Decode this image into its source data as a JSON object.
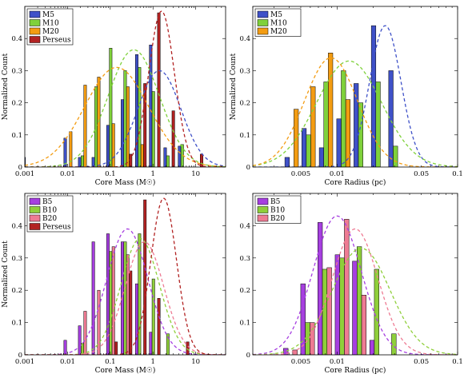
{
  "colors": {
    "M5": "#3f51c8",
    "M10": "#7fd13b",
    "M20": "#f39c12",
    "B5": "#a63fe0",
    "B10": "#8fcf3a",
    "B20": "#ee7b93",
    "Perseus": "#b22222"
  },
  "chart_data": [
    {
      "id": "top-left",
      "type": "bar",
      "xscale": "log",
      "xlim": [
        0.001,
        50
      ],
      "ylim": [
        0,
        0.5
      ],
      "xlabel": "Core Mass (M☉)",
      "ylabel": "Normalized Count",
      "xticks": [
        {
          "v": 0.001,
          "label": "0.001"
        },
        {
          "v": 0.01,
          "label": "0.01"
        },
        {
          "v": 0.1,
          "label": "0.1"
        },
        {
          "v": 1,
          "label": "1"
        },
        {
          "v": 10,
          "label": "10"
        }
      ],
      "yticks": [
        {
          "v": 0,
          "label": "0"
        },
        {
          "v": 0.1,
          "label": "0.1"
        },
        {
          "v": 0.2,
          "label": "0.2"
        },
        {
          "v": 0.3,
          "label": "0.3"
        },
        {
          "v": 0.4,
          "label": "0.4"
        }
      ],
      "bin_centers": [
        0.0012,
        0.0025,
        0.005,
        0.011,
        0.024,
        0.05,
        0.11,
        0.24,
        0.52,
        1.1,
        2.4,
        5.2,
        11,
        24
      ],
      "legend": "top-left",
      "series": [
        {
          "name": "M5",
          "color_key": "M5",
          "values": [
            0.03,
            0,
            0,
            0.09,
            0.03,
            0.03,
            0.13,
            0.21,
            0.35,
            0.38,
            0.06,
            0.065,
            0,
            0
          ]
        },
        {
          "name": "M10",
          "color_key": "M10",
          "values": [
            0,
            0,
            0,
            0,
            0.035,
            0.25,
            0.37,
            0.3,
            0.31,
            0.235,
            0.035,
            0.07,
            0,
            0
          ]
        },
        {
          "name": "M20",
          "color_key": "M20",
          "values": [
            0,
            0,
            0,
            0.11,
            0.255,
            0.28,
            0.135,
            0.25,
            0.07,
            0,
            0,
            0,
            0,
            0
          ]
        },
        {
          "name": "Perseus",
          "color_key": "Perseus",
          "values": [
            0,
            0,
            0,
            0,
            0,
            0,
            0,
            0.04,
            0.26,
            0.48,
            0.175,
            0,
            0.04,
            0
          ]
        }
      ],
      "fits": [
        {
          "color_key": "M5",
          "mu": 0.15,
          "sigma": 0.5,
          "peak": 0.3
        },
        {
          "color_key": "M10",
          "mu": -0.45,
          "sigma": 0.6,
          "peak": 0.365
        },
        {
          "color_key": "M20",
          "mu": -0.85,
          "sigma": 0.75,
          "peak": 0.31
        },
        {
          "color_key": "Perseus",
          "mu": 0.2,
          "sigma": 0.3,
          "peak": 0.485
        }
      ]
    },
    {
      "id": "top-right",
      "type": "bar",
      "xscale": "log",
      "xlim": [
        0.002,
        0.1
      ],
      "ylim": [
        0,
        0.5
      ],
      "xlabel": "Core Radius (pc)",
      "ylabel": "Normalized Count",
      "xticks": [
        {
          "v": 0.005,
          "label": "0.005"
        },
        {
          "v": 0.01,
          "label": "0.01"
        },
        {
          "v": 0.05,
          "label": "0.05"
        },
        {
          "v": 0.1,
          "label": "0.1"
        }
      ],
      "yticks": [
        {
          "v": 0,
          "label": "0"
        },
        {
          "v": 0.1,
          "label": "0.1"
        },
        {
          "v": 0.2,
          "label": "0.2"
        },
        {
          "v": 0.3,
          "label": "0.3"
        },
        {
          "v": 0.4,
          "label": "0.4"
        }
      ],
      "bin_centers": [
        0.0042,
        0.0058,
        0.0081,
        0.0113,
        0.0157,
        0.0219,
        0.0305,
        0.0424
      ],
      "legend": "top-left",
      "series": [
        {
          "name": "M5",
          "color_key": "M5",
          "values": [
            0.03,
            0.12,
            0.06,
            0.15,
            0.26,
            0.44,
            0.3,
            0
          ]
        },
        {
          "name": "M10",
          "color_key": "M10",
          "values": [
            0,
            0.1,
            0.265,
            0.3,
            0.2,
            0.265,
            0.065,
            0
          ]
        },
        {
          "name": "M20",
          "color_key": "M20",
          "values": [
            0.18,
            0.25,
            0.355,
            0.21,
            0,
            0,
            0,
            0
          ]
        }
      ],
      "fits": [
        {
          "color_key": "M5",
          "mu": -1.6,
          "sigma": 0.13,
          "peak": 0.44
        },
        {
          "color_key": "M10",
          "mu": -1.9,
          "sigma": 0.27,
          "peak": 0.33
        },
        {
          "color_key": "M20",
          "mu": -2.05,
          "sigma": 0.22,
          "peak": 0.34
        }
      ]
    },
    {
      "id": "bottom-left",
      "type": "bar",
      "xscale": "log",
      "xlim": [
        0.001,
        50
      ],
      "ylim": [
        0,
        0.5
      ],
      "xlabel": "Core Mass (M☉)",
      "ylabel": "Normalized Count",
      "xticks": [
        {
          "v": 0.001,
          "label": "0.001"
        },
        {
          "v": 0.01,
          "label": "0.01"
        },
        {
          "v": 0.1,
          "label": "0.1"
        },
        {
          "v": 1,
          "label": "1"
        },
        {
          "v": 10,
          "label": "10"
        }
      ],
      "yticks": [
        {
          "v": 0,
          "label": "0"
        },
        {
          "v": 0.1,
          "label": "0.1"
        },
        {
          "v": 0.2,
          "label": "0.2"
        },
        {
          "v": 0.3,
          "label": "0.3"
        },
        {
          "v": 0.4,
          "label": "0.4"
        }
      ],
      "bin_centers": [
        0.0012,
        0.0025,
        0.005,
        0.011,
        0.024,
        0.05,
        0.11,
        0.24,
        0.52,
        1.1,
        2.4,
        5.2,
        11,
        24
      ],
      "legend": "top-left",
      "series": [
        {
          "name": "B5",
          "color_key": "B5",
          "values": [
            0,
            0,
            0,
            0.045,
            0.09,
            0.35,
            0.375,
            0.35,
            0.22,
            0.07,
            0,
            0,
            0,
            0
          ]
        },
        {
          "name": "B10",
          "color_key": "B10",
          "values": [
            0,
            0,
            0,
            0,
            0.035,
            0,
            0.32,
            0.35,
            0.375,
            0.235,
            0.065,
            0,
            0,
            0
          ]
        },
        {
          "name": "B20",
          "color_key": "B20",
          "values": [
            0,
            0,
            0,
            0,
            0.135,
            0.2,
            0.335,
            0.31,
            0,
            0,
            0,
            0,
            0,
            0
          ]
        },
        {
          "name": "Perseus",
          "color_key": "Perseus",
          "values": [
            0,
            0,
            0,
            0,
            0,
            0,
            0.04,
            0.26,
            0.48,
            0.175,
            0,
            0.04,
            0,
            0
          ]
        }
      ],
      "fits": [
        {
          "color_key": "B5",
          "mu": -0.6,
          "sigma": 0.48,
          "peak": 0.39
        },
        {
          "color_key": "B10",
          "mu": -0.3,
          "sigma": 0.45,
          "peak": 0.36
        },
        {
          "color_key": "B20",
          "mu": -0.2,
          "sigma": 0.45,
          "peak": 0.35
        },
        {
          "color_key": "Perseus",
          "mu": 0.25,
          "sigma": 0.3,
          "peak": 0.485
        }
      ]
    },
    {
      "id": "bottom-right",
      "type": "bar",
      "xscale": "log",
      "xlim": [
        0.002,
        0.1
      ],
      "ylim": [
        0,
        0.5
      ],
      "xlabel": "Core Radius (pc)",
      "ylabel": "",
      "xticks": [
        {
          "v": 0.005,
          "label": "0.005"
        },
        {
          "v": 0.01,
          "label": "0.01"
        },
        {
          "v": 0.05,
          "label": "0.05"
        },
        {
          "v": 0.1,
          "label": "0.1"
        }
      ],
      "yticks": [
        {
          "v": 0,
          "label": "0"
        },
        {
          "v": 0.1,
          "label": "0.1"
        },
        {
          "v": 0.2,
          "label": "0.2"
        },
        {
          "v": 0.3,
          "label": "0.3"
        },
        {
          "v": 0.4,
          "label": "0.4"
        }
      ],
      "bin_centers": [
        0.0041,
        0.0057,
        0.0079,
        0.011,
        0.0153,
        0.0213,
        0.0296,
        0.0412
      ],
      "legend": "top-left",
      "series": [
        {
          "name": "B5",
          "color_key": "B5",
          "values": [
            0.02,
            0.22,
            0.41,
            0.31,
            0.29,
            0.045,
            0,
            0
          ]
        },
        {
          "name": "B10",
          "color_key": "B10",
          "values": [
            0,
            0.1,
            0.265,
            0.3,
            0.335,
            0.265,
            0.065,
            0
          ]
        },
        {
          "name": "B20",
          "color_key": "B20",
          "values": [
            0.015,
            0.1,
            0.27,
            0.42,
            0.185,
            0,
            0,
            0
          ]
        }
      ],
      "fits": [
        {
          "color_key": "B5",
          "mu": -2.0,
          "sigma": 0.2,
          "peak": 0.43
        },
        {
          "color_key": "B10",
          "mu": -1.8,
          "sigma": 0.24,
          "peak": 0.33
        },
        {
          "color_key": "B20",
          "mu": -1.85,
          "sigma": 0.19,
          "peak": 0.39
        }
      ]
    }
  ]
}
